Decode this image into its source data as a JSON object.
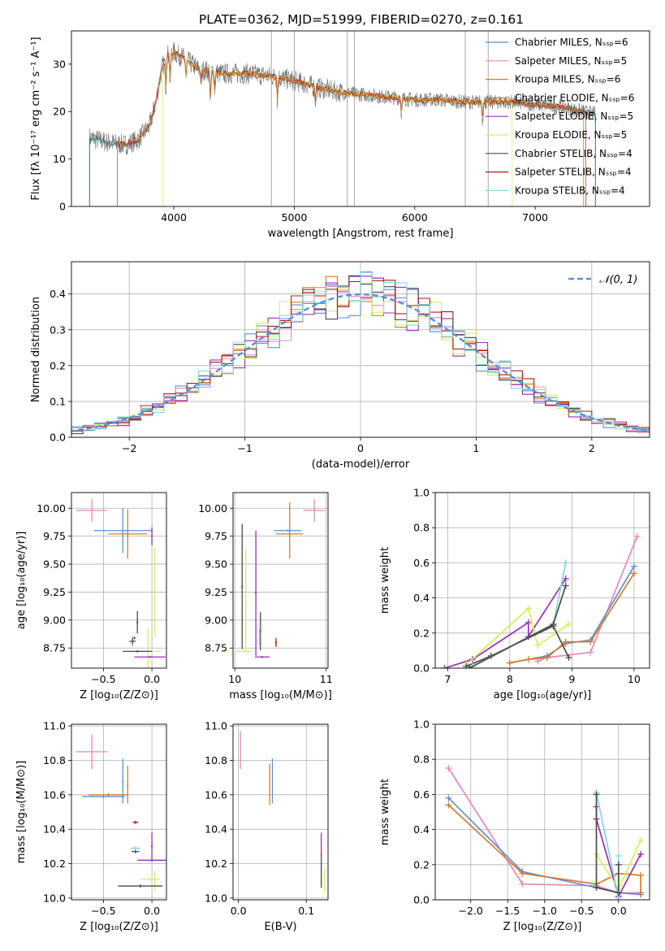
{
  "figure_title": "PLATE=0362, MJD=51999, FIBERID=0270, z=0.161",
  "colors": {
    "Chabrier MILES": "#5b8fd8",
    "Salpeter MILES": "#e889b6",
    "Kroupa MILES": "#d97a2b",
    "Chabrier ELODIE": "#d97a2b",
    "Salpeter ELODIE": "#9a2fb8",
    "Kroupa ELODIE": "#d5ef5a",
    "Chabrier STELIB": "#4b4b4b",
    "Salpeter STELIB": "#b01818",
    "Kroupa STELIB": "#85d8e0",
    "gauss": "#5b8fd8"
  },
  "chart_data": [
    {
      "id": "spectrum",
      "type": "line",
      "xlabel": "wavelength [Angstrom, rest frame]",
      "ylabel": "Flux [fλ 10⁻¹⁷ erg cm⁻² s⁻¹ A⁻¹]",
      "xlim": [
        3150,
        7950
      ],
      "ylim": [
        0,
        37
      ],
      "xticks": [
        4000,
        5000,
        6000,
        7000
      ],
      "yticks": [
        0,
        10,
        20,
        30
      ],
      "grid": false,
      "legend_position": "top-right",
      "legend": [
        {
          "label": "Chabrier MILES, Nₛₛₚ=6",
          "key": "Chabrier MILES"
        },
        {
          "label": "Salpeter MILES, Nₛₛₚ=5",
          "key": "Salpeter MILES"
        },
        {
          "label": "Kroupa MILES, Nₛₛₚ=6",
          "key": "Kroupa MILES"
        },
        {
          "label": "Chabrier ELODIE, Nₛₛₚ=6",
          "key": "Chabrier ELODIE"
        },
        {
          "label": "Salpeter ELODIE, Nₛₛₚ=5",
          "key": "Salpeter ELODIE"
        },
        {
          "label": "Kroupa ELODIE, Nₛₛₚ=5",
          "key": "Kroupa ELODIE"
        },
        {
          "label": "Chabrier STELIB, Nₛₛₚ=4",
          "key": "Chabrier STELIB"
        },
        {
          "label": "Salpeter STELIB, Nₛₛₚ=4",
          "key": "Salpeter STELIB"
        },
        {
          "label": "Kroupa STELIB, Nₛₛₚ=4",
          "key": "Kroupa STELIB"
        }
      ],
      "continuum": [
        [
          3300,
          14.5
        ],
        [
          3450,
          13.5
        ],
        [
          3600,
          13
        ],
        [
          3700,
          14
        ],
        [
          3800,
          17
        ],
        [
          3850,
          22
        ],
        [
          3900,
          29
        ],
        [
          3950,
          32
        ],
        [
          4000,
          32.5
        ],
        [
          4100,
          31
        ],
        [
          4200,
          29
        ],
        [
          4400,
          28
        ],
        [
          4600,
          28
        ],
        [
          4800,
          27.5
        ],
        [
          5000,
          26.5
        ],
        [
          5200,
          25
        ],
        [
          5400,
          24
        ],
        [
          5600,
          23.5
        ],
        [
          5800,
          23
        ],
        [
          6000,
          22.5
        ],
        [
          6200,
          22.5
        ],
        [
          6400,
          22
        ],
        [
          6600,
          22
        ],
        [
          6800,
          22
        ],
        [
          7000,
          21.5
        ],
        [
          7200,
          21
        ],
        [
          7400,
          20
        ],
        [
          7500,
          19.5
        ]
      ],
      "features": [
        [
          3934,
          6
        ],
        [
          3969,
          6
        ],
        [
          4102,
          4
        ],
        [
          4227,
          3
        ],
        [
          4304,
          6
        ],
        [
          4340,
          4
        ],
        [
          4861,
          5
        ],
        [
          5175,
          3
        ],
        [
          5890,
          3
        ],
        [
          6563,
          4
        ]
      ],
      "model_spectra": [
        {
          "key": "Kroupa STELIB",
          "start": 3300,
          "end": 7500
        },
        {
          "key": "Chabrier STELIB",
          "start": 3300,
          "end": 7500
        },
        {
          "key": "Kroupa ELODIE",
          "start": 3910,
          "end": 6810
        },
        {
          "key": "Salpeter STELIB",
          "start": 3530,
          "end": 7420
        },
        {
          "key": "Chabrier ELODIE",
          "start": 3530,
          "end": 7400
        }
      ],
      "gaps": [
        4810,
        5000,
        5440,
        5500,
        6420,
        6610
      ]
    },
    {
      "id": "residuals",
      "type": "histogram",
      "xlabel": "(data-model)/error",
      "ylabel": "Normed distribution",
      "xlim": [
        -2.5,
        2.5
      ],
      "ylim": [
        0,
        0.49
      ],
      "xticks": [
        -2,
        -1,
        0,
        1,
        2
      ],
      "yticks": [
        0.0,
        0.1,
        0.2,
        0.3,
        0.4
      ],
      "grid": true,
      "legend_position": "top-right",
      "gauss_label": "𝒩(0, 1)",
      "bin_width": 0.1,
      "series_keys": [
        "Chabrier MILES",
        "Salpeter MILES",
        "Kroupa MILES",
        "Salpeter ELODIE",
        "Kroupa ELODIE",
        "Chabrier STELIB",
        "Salpeter STELIB",
        "Kroupa STELIB"
      ]
    },
    {
      "id": "age_vs_Z",
      "type": "errorbar",
      "xlabel": "Z [log₁₀(Z/Z⊙)]",
      "ylabel": "age  [log₁₀(age/yr)]",
      "xlim": [
        -0.83,
        0.15
      ],
      "ylim": [
        8.57,
        10.14
      ],
      "xticks": [
        -0.5,
        0.0
      ],
      "yticks": [
        8.75,
        9.0,
        9.25,
        9.5,
        9.75,
        10.0
      ],
      "grid": true,
      "points": [
        {
          "key": "Salpeter MILES",
          "x": -0.62,
          "xerr": 0.16,
          "y": 9.98,
          "yerr": 0.1
        },
        {
          "key": "Chabrier MILES",
          "x": -0.3,
          "xerr": 0.3,
          "y": 9.8,
          "yerr": 0.2
        },
        {
          "key": "Kroupa MILES",
          "x": -0.25,
          "xerr": 0.2,
          "y": 9.77,
          "yerr": 0.22
        },
        {
          "key": "Salpeter ELODIE",
          "x": 0.0,
          "xerr": 0.01,
          "y": 9.75,
          "yerr": 0.08
        },
        {
          "key": "Kroupa ELODIE",
          "x": 0.03,
          "xerr": 0.01,
          "y": 9.25,
          "yerr": 0.4
        },
        {
          "key": "Chabrier STELIB",
          "x": -0.15,
          "xerr": 0.01,
          "y": 8.98,
          "yerr": 0.1
        },
        {
          "key": "Kroupa STELIB",
          "x": -0.2,
          "xerr": 0.04,
          "y": 8.81,
          "yerr": 0.05
        },
        {
          "key": "Chabrier STELIB",
          "x": -0.2,
          "xerr": 0.03,
          "y": 8.81,
          "yerr": 0.03
        },
        {
          "key": "Salpeter STELIB",
          "x": -0.18,
          "xerr": 0.01,
          "y": 8.84,
          "yerr": 0.01
        },
        {
          "key": "Kroupa ELODIE",
          "x": -0.04,
          "xerr": 0.13,
          "y": 8.72,
          "yerr": 0.2
        },
        {
          "key": "Chabrier STELIB",
          "x": -0.15,
          "xerr": 0.15,
          "y": 8.72,
          "yerr": 0.01
        },
        {
          "key": "Salpeter ELODIE",
          "x": -0.02,
          "xerr": 0.16,
          "y": 8.67,
          "yerr": 0.01
        }
      ]
    },
    {
      "id": "age_vs_mass",
      "type": "errorbar",
      "xlabel": "mass [log₁₀(M/M⊙)]",
      "ylabel": "",
      "xlim": [
        9.98,
        11.02
      ],
      "ylim": [
        8.57,
        10.14
      ],
      "xticks": [
        10,
        11
      ],
      "yticks": [
        8.75,
        9.0,
        9.25,
        9.5,
        9.75,
        10.0
      ],
      "grid": true,
      "points": [
        {
          "key": "Salpeter MILES",
          "x": 10.87,
          "xerr": 0.12,
          "y": 9.98,
          "yerr": 0.1
        },
        {
          "key": "Kroupa MILES",
          "x": 10.6,
          "xerr": 0.01,
          "y": 9.8,
          "yerr": 0.25
        },
        {
          "key": "Chabrier MILES",
          "x": 10.58,
          "xerr": 0.15,
          "y": 9.8,
          "yerr": 0.01
        },
        {
          "key": "Kroupa MILES",
          "x": 10.6,
          "xerr": 0.15,
          "y": 9.77,
          "yerr": 0.01
        },
        {
          "key": "Salpeter ELODIE",
          "x": 10.23,
          "xerr": 0.01,
          "y": 9.24,
          "yerr": 0.56
        },
        {
          "key": "Chabrier STELIB",
          "x": 10.08,
          "xerr": 0.01,
          "y": 9.3,
          "yerr": 0.56
        },
        {
          "key": "Kroupa ELODIE",
          "x": 10.12,
          "xerr": 0.01,
          "y": 9.17,
          "yerr": 0.46
        },
        {
          "key": "Kroupa ELODIE",
          "x": 10.1,
          "xerr": 0.08,
          "y": 8.72,
          "yerr": 0.01
        },
        {
          "key": "Chabrier STELIB",
          "x": 10.28,
          "xerr": 0.01,
          "y": 8.9,
          "yerr": 0.17
        },
        {
          "key": "Kroupa STELIB",
          "x": 10.27,
          "xerr": 0.01,
          "y": 8.85,
          "yerr": 0.08
        },
        {
          "key": "Salpeter STELIB",
          "x": 10.45,
          "xerr": 0.01,
          "y": 8.8,
          "yerr": 0.04
        },
        {
          "key": "Salpeter ELODIE",
          "x": 10.3,
          "xerr": 0.08,
          "y": 8.67,
          "yerr": 0.01
        }
      ]
    },
    {
      "id": "weight_vs_age",
      "type": "line",
      "xlabel": "age  [log₁₀(age/yr)]",
      "ylabel": "mass weight",
      "xlim": [
        6.8,
        10.25
      ],
      "ylim": [
        0,
        1
      ],
      "xticks": [
        7,
        8,
        9,
        10
      ],
      "yticks": [
        0.0,
        0.2,
        0.4,
        0.6,
        0.8,
        1.0
      ],
      "grid": true,
      "series": [
        {
          "key": "Salpeter MILES",
          "x": [
            8.45,
            8.6,
            9.3,
            10.05
          ],
          "y": [
            0.04,
            0.06,
            0.09,
            0.75
          ]
        },
        {
          "key": "Chabrier MILES",
          "x": [
            8.0,
            8.6,
            8.9,
            9.3,
            10.0
          ],
          "y": [
            0.03,
            0.07,
            0.14,
            0.16,
            0.58
          ]
        },
        {
          "key": "Kroupa MILES",
          "x": [
            8.0,
            8.3,
            8.6,
            8.9,
            9.3,
            10.0
          ],
          "y": [
            0.03,
            0.05,
            0.06,
            0.15,
            0.15,
            0.54
          ]
        },
        {
          "key": "Salpeter ELODIE",
          "x": [
            6.95,
            7.4,
            8.3,
            8.3,
            8.9
          ],
          "y": [
            0.0,
            0.05,
            0.26,
            0.18,
            0.51
          ]
        },
        {
          "key": "Kroupa ELODIE",
          "x": [
            7.3,
            8.3,
            8.45,
            8.95
          ],
          "y": [
            0.02,
            0.34,
            0.13,
            0.25
          ]
        },
        {
          "key": "Chabrier STELIB",
          "x": [
            7.3,
            7.7,
            8.7,
            8.95
          ],
          "y": [
            0.01,
            0.07,
            0.24,
            0.06
          ]
        },
        {
          "key": "Kroupa STELIB",
          "x": [
            7.4,
            8.7,
            8.9
          ],
          "y": [
            0.01,
            0.25,
            0.6
          ]
        },
        {
          "key": "Chabrier STELIB",
          "x": [
            7.35,
            8.7,
            8.9
          ],
          "y": [
            0.0,
            0.25,
            0.47
          ]
        }
      ]
    },
    {
      "id": "mass_vs_Z",
      "type": "errorbar",
      "xlabel": "Z [log₁₀(Z/Z⊙)]",
      "ylabel": "mass [log₁₀(M/M⊙)]",
      "xlim": [
        -0.83,
        0.15
      ],
      "ylim": [
        9.99,
        11.01
      ],
      "xticks": [
        -0.5,
        0.0
      ],
      "yticks": [
        10.0,
        10.2,
        10.4,
        10.6,
        10.8,
        11.0
      ],
      "grid": true,
      "points": [
        {
          "key": "Salpeter MILES",
          "x": -0.62,
          "xerr": 0.16,
          "y": 10.85,
          "yerr": 0.1
        },
        {
          "key": "Chabrier MILES",
          "x": -0.3,
          "xerr": 0.01,
          "y": 10.68,
          "yerr": 0.13
        },
        {
          "key": "Kroupa MILES",
          "x": -0.25,
          "xerr": 0.01,
          "y": 10.66,
          "yerr": 0.11
        },
        {
          "key": "Chabrier MILES",
          "x": -0.5,
          "xerr": 0.22,
          "y": 10.59,
          "yerr": 0.01
        },
        {
          "key": "Kroupa MILES",
          "x": -0.45,
          "xerr": 0.2,
          "y": 10.6,
          "yerr": 0.01
        },
        {
          "key": "Salpeter STELIB",
          "x": -0.17,
          "xerr": 0.03,
          "y": 10.44,
          "yerr": 0.01
        },
        {
          "key": "Kroupa STELIB",
          "x": -0.17,
          "xerr": 0.05,
          "y": 10.29,
          "yerr": 0.01
        },
        {
          "key": "Chabrier STELIB",
          "x": -0.17,
          "xerr": 0.04,
          "y": 10.27,
          "yerr": 0.01
        },
        {
          "key": "Salpeter ELODIE",
          "x": 0.0,
          "xerr": 0.15,
          "y": 10.22,
          "yerr": 0.01
        },
        {
          "key": "Salpeter ELODIE",
          "x": 0.0,
          "xerr": 0.01,
          "y": 10.3,
          "yerr": 0.08
        },
        {
          "key": "Kroupa ELODIE",
          "x": 0.03,
          "xerr": 0.01,
          "y": 10.1,
          "yerr": 0.06
        },
        {
          "key": "Kroupa ELODIE",
          "x": -0.02,
          "xerr": 0.1,
          "y": 10.11,
          "yerr": 0.01
        },
        {
          "key": "Chabrier STELIB",
          "x": -0.12,
          "xerr": 0.23,
          "y": 10.07,
          "yerr": 0.01
        }
      ]
    },
    {
      "id": "mass_vs_ebv",
      "type": "errorbar",
      "xlabel": "E(B-V)",
      "ylabel": "",
      "xlim": [
        -0.008,
        0.132
      ],
      "ylim": [
        9.99,
        11.01
      ],
      "xticks": [
        0.0,
        0.1
      ],
      "yticks": [
        10.0,
        10.2,
        10.4,
        10.6,
        10.8,
        11.0
      ],
      "grid": true,
      "points": [
        {
          "key": "Salpeter MILES",
          "x": 0.003,
          "xerr": 0.0004,
          "y": 10.86,
          "yerr": 0.11
        },
        {
          "key": "Chabrier MILES",
          "x": 0.05,
          "xerr": 0.0004,
          "y": 10.68,
          "yerr": 0.13
        },
        {
          "key": "Kroupa MILES",
          "x": 0.046,
          "xerr": 0.0004,
          "y": 10.66,
          "yerr": 0.12
        },
        {
          "key": "Salpeter ELODIE",
          "x": 0.122,
          "xerr": 0.0004,
          "y": 10.31,
          "yerr": 0.07
        },
        {
          "key": "Chabrier STELIB",
          "x": 0.122,
          "xerr": 0.0004,
          "y": 10.16,
          "yerr": 0.1
        },
        {
          "key": "Kroupa ELODIE",
          "x": 0.127,
          "xerr": 0.0004,
          "y": 10.1,
          "yerr": 0.07
        }
      ]
    },
    {
      "id": "weight_vs_Z",
      "type": "line",
      "xlabel": "Z [log₁₀(Z/Z⊙)]",
      "ylabel": "mass weight",
      "xlim": [
        -2.48,
        0.42
      ],
      "ylim": [
        0,
        1
      ],
      "xticks": [
        -2.0,
        -1.5,
        -1.0,
        -0.5,
        0.0
      ],
      "yticks": [
        0.0,
        0.2,
        0.4,
        0.6,
        0.8,
        1.0
      ],
      "grid": true,
      "series": [
        {
          "key": "Salpeter MILES",
          "x": [
            -2.3,
            -1.3,
            -0.3,
            0.0,
            0.3
          ],
          "y": [
            0.75,
            0.09,
            0.08,
            0.04,
            0.04
          ]
        },
        {
          "key": "Chabrier MILES",
          "x": [
            -2.3,
            -1.3,
            -0.3,
            0.0,
            0.3
          ],
          "y": [
            0.58,
            0.16,
            0.07,
            0.04,
            0.03
          ]
        },
        {
          "key": "Kroupa MILES",
          "x": [
            -2.3,
            -1.3,
            -0.3,
            0.0,
            0.3,
            0.3
          ],
          "y": [
            0.54,
            0.15,
            0.09,
            0.15,
            0.14,
            0.04
          ]
        },
        {
          "key": "Salpeter ELODIE",
          "x": [
            -0.3,
            -0.3,
            0.0,
            0.3
          ],
          "y": [
            0.53,
            0.46,
            0.02,
            0.26
          ]
        },
        {
          "key": "Kroupa ELODIE",
          "x": [
            -0.3,
            0.0,
            0.3
          ],
          "y": [
            0.26,
            0.06,
            0.34
          ]
        },
        {
          "key": "Kroupa STELIB",
          "x": [
            -0.3,
            0.0,
            0.0
          ],
          "y": [
            0.61,
            0.01,
            0.25
          ]
        },
        {
          "key": "Chabrier STELIB",
          "x": [
            -0.3,
            -0.3,
            0.0,
            0.0
          ],
          "y": [
            0.6,
            0.07,
            0.04,
            0.2
          ]
        }
      ]
    }
  ]
}
